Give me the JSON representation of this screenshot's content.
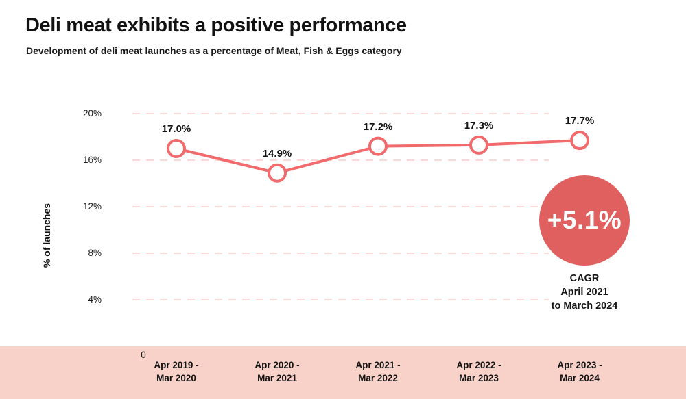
{
  "chart_data": {
    "type": "line",
    "title": "Deli meat exhibits a positive performance",
    "subtitle": "Development of deli meat launches as a percentage of Meat, Fish & Eggs category",
    "ylabel": "% of launches",
    "xlabel": "",
    "ylim": [
      0,
      20
    ],
    "grid": "horizontal-dashed",
    "legend": "none",
    "categories": [
      "Apr 2019 -\nMar 2020",
      "Apr 2020 -\nMar 2021",
      "Apr 2021 -\nMar 2022",
      "Apr 2022 -\nMar 2023",
      "Apr 2023 -\nMar 2024"
    ],
    "values": [
      17.0,
      14.9,
      17.2,
      17.3,
      17.7
    ],
    "point_labels": [
      "17.0%",
      "14.9%",
      "17.2%",
      "17.3%",
      "17.7%"
    ],
    "yticks": [
      {
        "value": 20,
        "label": "20%"
      },
      {
        "value": 16,
        "label": "16%"
      },
      {
        "value": 12,
        "label": "12%"
      },
      {
        "value": 8,
        "label": "8%"
      },
      {
        "value": 4,
        "label": "4%"
      }
    ],
    "origin_label": "0",
    "annotation": {
      "badge_value": "+5.1%",
      "caption": "CAGR\nApril 2021\nto March 2024"
    }
  },
  "colors": {
    "line": "#f26a6c",
    "marker_fill": "#ffffff",
    "badge": "#e05f5f",
    "band": "#f8d2c9",
    "grid": "#f8d9d6",
    "badge_text": "#ffffff"
  }
}
